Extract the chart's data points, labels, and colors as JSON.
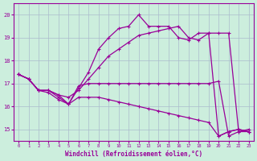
{
  "xlabel": "Windchill (Refroidissement éolien,°C)",
  "bg_color": "#cceedd",
  "line_color": "#990099",
  "grid_color": "#aabbcc",
  "xlim": [
    -0.5,
    23.5
  ],
  "ylim": [
    14.5,
    20.5
  ],
  "xticks": [
    0,
    1,
    2,
    3,
    4,
    5,
    6,
    7,
    8,
    9,
    10,
    11,
    12,
    13,
    14,
    15,
    16,
    17,
    18,
    19,
    20,
    21,
    22,
    23
  ],
  "yticks": [
    15,
    16,
    17,
    18,
    19,
    20
  ],
  "lineA_x": [
    0,
    1,
    2,
    3,
    4,
    5,
    6,
    7,
    8,
    9,
    10,
    11,
    12,
    13,
    14,
    15,
    16,
    17,
    18,
    19,
    20,
    21,
    22,
    23
  ],
  "lineA_y": [
    17.4,
    17.2,
    16.7,
    16.7,
    16.5,
    16.4,
    16.7,
    17.2,
    17.7,
    18.2,
    18.5,
    18.8,
    19.1,
    19.2,
    19.3,
    19.4,
    19.5,
    19.0,
    18.9,
    19.2,
    19.2,
    19.2,
    14.9,
    15.0
  ],
  "lineB_x": [
    0,
    1,
    2,
    3,
    4,
    5,
    6,
    7,
    8,
    9,
    10,
    11,
    12,
    13,
    14,
    15,
    16,
    17,
    18,
    19,
    20,
    21,
    22,
    23
  ],
  "lineB_y": [
    17.4,
    17.2,
    16.7,
    16.7,
    16.5,
    16.1,
    16.8,
    17.5,
    18.5,
    19.0,
    19.4,
    19.5,
    20.0,
    19.5,
    19.5,
    19.5,
    19.0,
    18.9,
    19.2,
    19.2,
    14.7,
    14.9,
    15.0,
    14.9
  ],
  "lineC_x": [
    0,
    1,
    2,
    3,
    4,
    5,
    6,
    7,
    8,
    9,
    10,
    11,
    12,
    13,
    14,
    15,
    16,
    17,
    18,
    19,
    20,
    21,
    22,
    23
  ],
  "lineC_y": [
    17.4,
    17.2,
    16.7,
    16.7,
    16.4,
    16.1,
    16.9,
    17.0,
    17.0,
    17.0,
    17.0,
    17.0,
    17.0,
    17.0,
    17.0,
    17.0,
    17.0,
    17.0,
    17.0,
    17.0,
    17.1,
    14.7,
    14.9,
    14.9
  ],
  "lineD_x": [
    0,
    1,
    2,
    3,
    4,
    5,
    6,
    7,
    8,
    9,
    10,
    11,
    12,
    13,
    14,
    15,
    16,
    17,
    18,
    19,
    20,
    21,
    22,
    23
  ],
  "lineD_y": [
    17.4,
    17.2,
    16.7,
    16.6,
    16.3,
    16.1,
    16.4,
    16.4,
    16.4,
    16.3,
    16.2,
    16.1,
    16.0,
    15.9,
    15.8,
    15.7,
    15.6,
    15.5,
    15.4,
    15.3,
    14.7,
    14.9,
    15.0,
    14.9
  ]
}
